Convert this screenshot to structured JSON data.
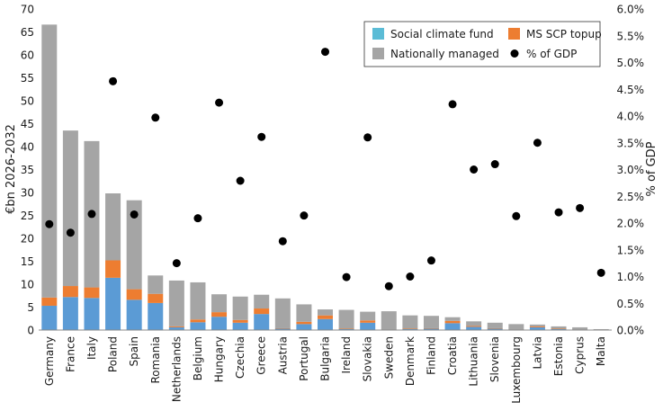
{
  "chart_data": {
    "type": "bar",
    "stacked": true,
    "categories": [
      "Germany",
      "France",
      "Italy",
      "Poland",
      "Spain",
      "Romania",
      "Netherlands",
      "Belgium",
      "Hungary",
      "Czechia",
      "Greece",
      "Austria",
      "Portugal",
      "Bulgaria",
      "Ireland",
      "Slovakia",
      "Sweden",
      "Denmark",
      "Finland",
      "Croatia",
      "Lithuania",
      "Slovenia",
      "Luxembourg",
      "Latvia",
      "Estonia",
      "Cyprus",
      "Malta"
    ],
    "series": [
      {
        "name": "Social climate fund",
        "color": "#5b9bd5",
        "axis": "left",
        "values": [
          5.3,
          7.2,
          7.0,
          11.4,
          6.6,
          5.9,
          0.6,
          1.7,
          2.9,
          1.6,
          3.5,
          0.3,
          1.3,
          2.4,
          0.2,
          1.6,
          0.1,
          0.2,
          0.3,
          1.5,
          0.7,
          0.3,
          0.1,
          0.6,
          0.2,
          0.1,
          0.1
        ]
      },
      {
        "name": "MS SCP topup",
        "color": "#ed7d31",
        "axis": "left",
        "values": [
          1.8,
          2.4,
          2.3,
          3.8,
          2.3,
          2.0,
          0.2,
          0.6,
          1.0,
          0.6,
          1.2,
          0.1,
          0.5,
          0.8,
          0.1,
          0.5,
          0.0,
          0.1,
          0.1,
          0.5,
          0.2,
          0.1,
          0.0,
          0.2,
          0.1,
          0.0,
          0.0
        ]
      },
      {
        "name": "Nationally managed",
        "color": "#a5a5a5",
        "axis": "left",
        "values": [
          59.5,
          33.9,
          31.9,
          14.6,
          19.4,
          4.0,
          10.0,
          8.1,
          3.9,
          5.1,
          3.0,
          6.5,
          3.8,
          1.3,
          4.1,
          1.9,
          4.0,
          2.9,
          2.7,
          0.8,
          1.0,
          1.2,
          1.2,
          0.4,
          0.5,
          0.5,
          0.1
        ]
      },
      {
        "name": "% of GDP",
        "color": "#000000",
        "axis": "right",
        "type": "scatter",
        "values": [
          1.98,
          1.82,
          2.17,
          4.65,
          2.16,
          3.97,
          1.25,
          2.09,
          4.25,
          2.79,
          3.61,
          1.66,
          2.14,
          5.2,
          0.99,
          3.6,
          0.82,
          1.0,
          1.3,
          4.22,
          3.0,
          3.1,
          2.13,
          3.5,
          2.2,
          2.28,
          1.07
        ]
      }
    ],
    "ylabel": "€bn 2026-2032",
    "y2label": "% of GDP",
    "ylim": [
      0,
      70
    ],
    "y2lim": [
      0,
      6
    ],
    "yticks": [
      "0",
      "5",
      "10",
      "15",
      "20",
      "25",
      "30",
      "35",
      "40",
      "45",
      "50",
      "55",
      "60",
      "65",
      "70"
    ],
    "y2ticks": [
      "0.0%",
      "0.5%",
      "1.0%",
      "1.5%",
      "2.0%",
      "2.5%",
      "3.0%",
      "3.5%",
      "4.0%",
      "4.5%",
      "5.0%",
      "5.5%",
      "6.0%"
    ],
    "legend_position": "top-right",
    "grid": false
  }
}
